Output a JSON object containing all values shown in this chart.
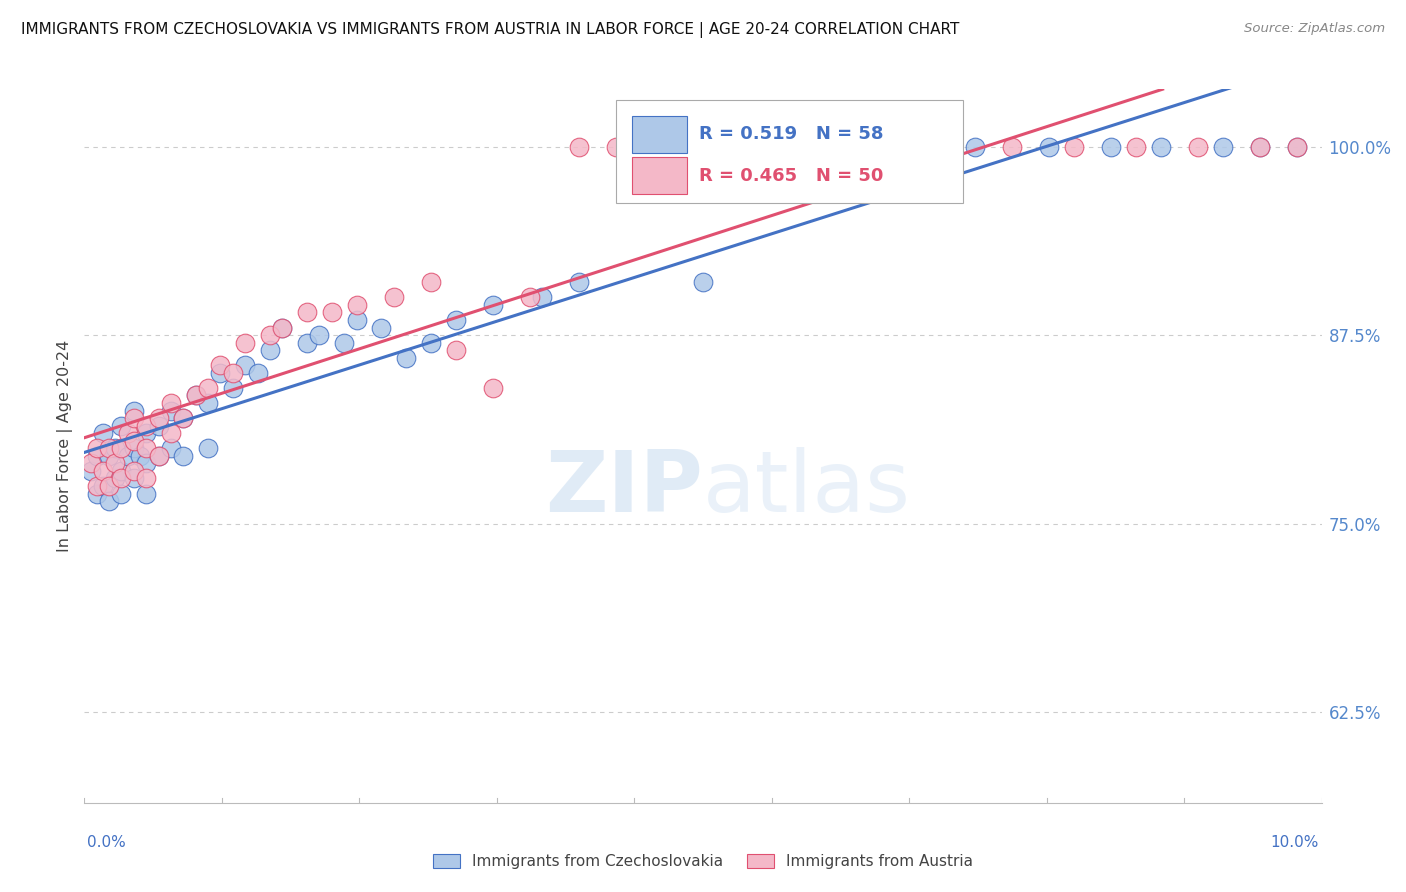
{
  "title": "IMMIGRANTS FROM CZECHOSLOVAKIA VS IMMIGRANTS FROM AUSTRIA IN LABOR FORCE | AGE 20-24 CORRELATION CHART",
  "source": "Source: ZipAtlas.com",
  "ylabel": "In Labor Force | Age 20-24",
  "y_ticks": [
    0.625,
    0.75,
    0.875,
    1.0
  ],
  "y_tick_labels": [
    "62.5%",
    "75.0%",
    "87.5%",
    "100.0%"
  ],
  "x_min": 0.0,
  "x_max": 0.1,
  "y_min": 0.565,
  "y_max": 1.038,
  "legend_r1": "0.519",
  "legend_n1": "58",
  "legend_r2": "0.465",
  "legend_n2": "50",
  "color_blue": "#aec8e8",
  "color_pink": "#f4b8c8",
  "color_blue_line": "#4472c4",
  "color_pink_line": "#e05070",
  "color_blue_text": "#4472c4",
  "color_pink_text": "#e05070",
  "color_right_tick": "#5588cc",
  "watermark_color": "#d8eaf8",
  "blue_x": [
    0.0005,
    0.001,
    0.001,
    0.0015,
    0.0015,
    0.002,
    0.002,
    0.0025,
    0.0025,
    0.003,
    0.003,
    0.003,
    0.0035,
    0.004,
    0.004,
    0.004,
    0.0045,
    0.005,
    0.005,
    0.005,
    0.006,
    0.006,
    0.007,
    0.007,
    0.008,
    0.008,
    0.009,
    0.01,
    0.01,
    0.011,
    0.012,
    0.013,
    0.014,
    0.015,
    0.016,
    0.018,
    0.019,
    0.021,
    0.022,
    0.024,
    0.026,
    0.028,
    0.03,
    0.033,
    0.037,
    0.04,
    0.047,
    0.05,
    0.055,
    0.06,
    0.068,
    0.072,
    0.078,
    0.083,
    0.087,
    0.092,
    0.095,
    0.098
  ],
  "blue_y": [
    0.785,
    0.77,
    0.795,
    0.775,
    0.81,
    0.765,
    0.795,
    0.78,
    0.8,
    0.77,
    0.785,
    0.815,
    0.795,
    0.78,
    0.8,
    0.825,
    0.795,
    0.77,
    0.79,
    0.81,
    0.795,
    0.815,
    0.8,
    0.825,
    0.795,
    0.82,
    0.835,
    0.8,
    0.83,
    0.85,
    0.84,
    0.855,
    0.85,
    0.865,
    0.88,
    0.87,
    0.875,
    0.87,
    0.885,
    0.88,
    0.86,
    0.87,
    0.885,
    0.895,
    0.9,
    0.91,
    1.0,
    0.91,
    1.0,
    1.0,
    1.0,
    1.0,
    1.0,
    1.0,
    1.0,
    1.0,
    1.0,
    1.0
  ],
  "pink_x": [
    0.0005,
    0.001,
    0.001,
    0.0015,
    0.002,
    0.002,
    0.0025,
    0.003,
    0.003,
    0.0035,
    0.004,
    0.004,
    0.004,
    0.005,
    0.005,
    0.005,
    0.006,
    0.006,
    0.007,
    0.007,
    0.008,
    0.009,
    0.01,
    0.011,
    0.012,
    0.013,
    0.015,
    0.016,
    0.018,
    0.02,
    0.022,
    0.025,
    0.028,
    0.03,
    0.033,
    0.036,
    0.04,
    0.043,
    0.047,
    0.05,
    0.055,
    0.06,
    0.065,
    0.07,
    0.075,
    0.08,
    0.085,
    0.09,
    0.095,
    0.098
  ],
  "pink_y": [
    0.79,
    0.775,
    0.8,
    0.785,
    0.775,
    0.8,
    0.79,
    0.78,
    0.8,
    0.81,
    0.785,
    0.805,
    0.82,
    0.78,
    0.8,
    0.815,
    0.795,
    0.82,
    0.81,
    0.83,
    0.82,
    0.835,
    0.84,
    0.855,
    0.85,
    0.87,
    0.875,
    0.88,
    0.89,
    0.89,
    0.895,
    0.9,
    0.91,
    0.865,
    0.84,
    0.9,
    1.0,
    1.0,
    1.0,
    1.0,
    1.0,
    1.0,
    1.0,
    1.0,
    1.0,
    1.0,
    1.0,
    1.0,
    1.0,
    1.0
  ],
  "blue_trend": [
    0.775,
    0.995
  ],
  "pink_trend_start_x": 0.0,
  "pink_trend_end_x": 0.044,
  "pink_trend": [
    0.77,
    1.005
  ],
  "grid_color": "#cccccc",
  "spine_color": "#bbbbbb"
}
